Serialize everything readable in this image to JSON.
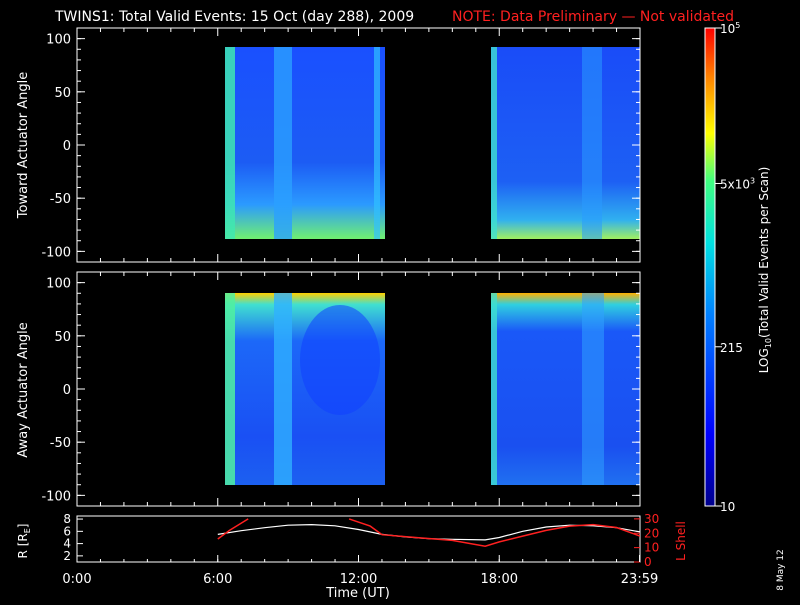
{
  "title": "TWINS1: Total Valid Events: 15 Oct (day 288), 2009",
  "note": "NOTE: Data Preliminary — Not validated",
  "side_date": "8 May 12",
  "colors": {
    "background": "#000000",
    "note": "#ff2020",
    "l_shell_line": "#ff2020",
    "r_line": "#ffffff",
    "axes": "#ffffff"
  },
  "chart_data": [
    {
      "type": "heatmap",
      "ylabel": "Toward Actuator Angle",
      "ylim": [
        -110,
        110
      ],
      "yticks": [
        "100",
        "50",
        "0",
        "-50",
        "-100"
      ],
      "xlim": [
        0,
        24
      ],
      "data_blocks": [
        {
          "start_hour": 6.0,
          "end_hour": 12.9,
          "angle_min": -88,
          "angle_max": 90
        },
        {
          "start_hour": 17.4,
          "end_hour": 24.0,
          "angle_min": -88,
          "angle_max": 90
        }
      ]
    },
    {
      "type": "heatmap",
      "ylabel": "Away Actuator Angle",
      "ylim": [
        -110,
        110
      ],
      "yticks": [
        "100",
        "50",
        "0",
        "-50",
        "-100"
      ],
      "xlim": [
        0,
        24
      ],
      "data_blocks": [
        {
          "start_hour": 6.0,
          "end_hour": 12.9,
          "angle_min": -90,
          "angle_max": 90
        },
        {
          "start_hour": 17.4,
          "end_hour": 24.0,
          "angle_min": -90,
          "angle_max": 90
        }
      ]
    },
    {
      "type": "line",
      "ylabel": "R [R",
      "ylabel_sub": "E",
      "ylabel_tail": "]",
      "ylabel_right": "L Shell",
      "ylim": [
        1,
        8.5
      ],
      "yticks": [
        "8",
        "6",
        "4",
        "2"
      ],
      "yticks_right": [
        "30",
        "20",
        "10",
        "0"
      ],
      "xlabel": "Time (UT)",
      "xticks": [
        "0:00",
        "6:00",
        "12:00",
        "18:00",
        "23:59"
      ],
      "series": [
        {
          "name": "R",
          "x": [
            6.0,
            7.0,
            8.0,
            9.0,
            10.0,
            11.0,
            12.0,
            13.0,
            14.0,
            15.0,
            16.0,
            17.4,
            18.0,
            19.0,
            20.0,
            21.0,
            22.0,
            23.0,
            24.0
          ],
          "values": [
            5.5,
            6.1,
            6.6,
            7.0,
            7.1,
            6.9,
            6.3,
            5.5,
            5.1,
            4.8,
            4.7,
            4.6,
            5.0,
            6.0,
            6.7,
            7.0,
            6.9,
            6.6,
            5.9
          ]
        },
        {
          "name": "L Shell",
          "x": [
            6.0,
            6.5,
            7.3,
            7.8,
            11.0,
            11.6,
            12.5,
            13.0,
            14.5,
            16.0,
            17.4,
            18.0,
            19.0,
            20.0,
            21.0,
            22.0,
            23.0,
            24.0
          ],
          "values": [
            16,
            22,
            30,
            null,
            null,
            30,
            25,
            19,
            17,
            15,
            11,
            14,
            18,
            22,
            25,
            26,
            24,
            18
          ]
        }
      ]
    }
  ],
  "colorbar": {
    "label_prefix": "LOG",
    "label_sub": "10",
    "label_suffix": "(Total Valid Events per Scan)",
    "ticks": [
      {
        "base": "10",
        "sup": "5",
        "value": 100000
      },
      {
        "base": "5x10",
        "sup": "3",
        "value": 5000
      },
      {
        "base": "215",
        "sup": "",
        "value": 215
      },
      {
        "base": "10",
        "sup": "",
        "value": 10
      }
    ],
    "range": [
      10,
      100000
    ]
  }
}
